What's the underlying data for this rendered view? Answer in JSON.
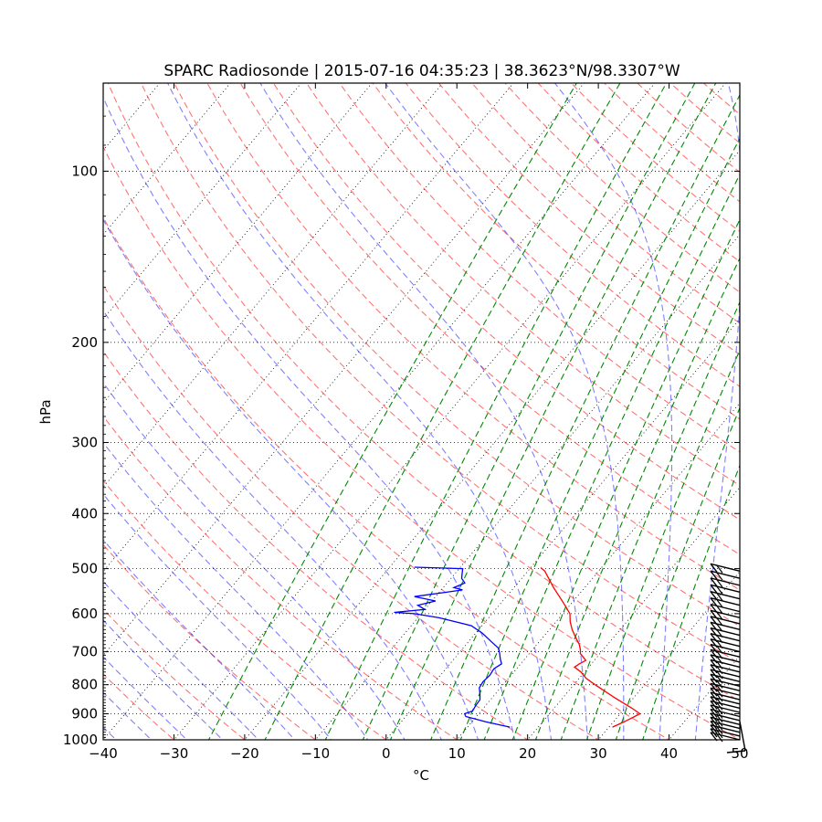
{
  "chart_data": {
    "type": "line",
    "title": "SPARC Radiosonde | 2015-07-16 04:35:23 | 38.3623°N/98.3307°W",
    "xlabel": "°C",
    "ylabel": "hPa",
    "xlim": [
      -40,
      50
    ],
    "ylim": [
      1000,
      70
    ],
    "y_scale": "log",
    "x_ticks": [
      "−40",
      "−30",
      "−20",
      "−10",
      "0",
      "10",
      "20",
      "30",
      "40",
      "50"
    ],
    "y_ticks": [
      100,
      200,
      300,
      400,
      500,
      600,
      700,
      800,
      900,
      1000
    ],
    "grid": true,
    "colors": {
      "temperature": "#ff0000",
      "dewpoint": "#0000ff",
      "dry_adiabats": "#ff5555",
      "moist_adiabats": "#5555ff",
      "mixing_ratio": "#008800",
      "isotherms": "#000000",
      "wind_barbs": "#000000"
    },
    "series": [
      {
        "key": "temperature",
        "pressure_hPa": [
          950,
          930,
          900,
          880,
          860,
          840,
          820,
          800,
          780,
          760,
          745,
          735,
          725,
          715,
          705,
          695,
          680,
          660,
          640,
          620,
          600,
          580,
          560,
          540,
          520,
          505,
          498
        ],
        "temp_C": [
          30.5,
          31.5,
          32.8,
          31.0,
          29.0,
          27.0,
          25.0,
          23.0,
          21.0,
          19.5,
          18.0,
          18.3,
          18.8,
          18.0,
          17.2,
          16.8,
          16.0,
          14.6,
          13.2,
          12.0,
          11.0,
          9.3,
          7.5,
          5.6,
          3.8,
          2.4,
          1.4
        ]
      },
      {
        "key": "dewpoint",
        "pressure_hPa": [
          950,
          930,
          910,
          900,
          890,
          870,
          850,
          830,
          810,
          790,
          770,
          750,
          735,
          720,
          705,
          690,
          670,
          650,
          630,
          610,
          600,
          597,
          590,
          580,
          570,
          560,
          550,
          545,
          540,
          530,
          520,
          510,
          500,
          497
        ],
        "temp_C": [
          16.0,
          12.0,
          8.5,
          8.0,
          8.8,
          8.6,
          8.5,
          7.8,
          7.0,
          6.8,
          7.0,
          6.8,
          7.3,
          6.5,
          5.8,
          5.0,
          3.0,
          1.0,
          -1.5,
          -7.0,
          -11.0,
          -14.0,
          -10.0,
          -11.5,
          -9.5,
          -13.0,
          -9.0,
          -7.0,
          -8.5,
          -7.5,
          -8.5,
          -9.0,
          -9.5,
          -16.5
        ]
      }
    ],
    "wind_barb_pressures_hPa": [
      1000,
      985,
      970,
      955,
      940,
      925,
      910,
      895,
      880,
      865,
      850,
      835,
      820,
      805,
      790,
      775,
      760,
      745,
      730,
      715,
      700,
      685,
      670,
      655,
      640,
      625,
      610,
      595,
      580,
      565,
      550,
      535,
      520,
      505
    ]
  }
}
